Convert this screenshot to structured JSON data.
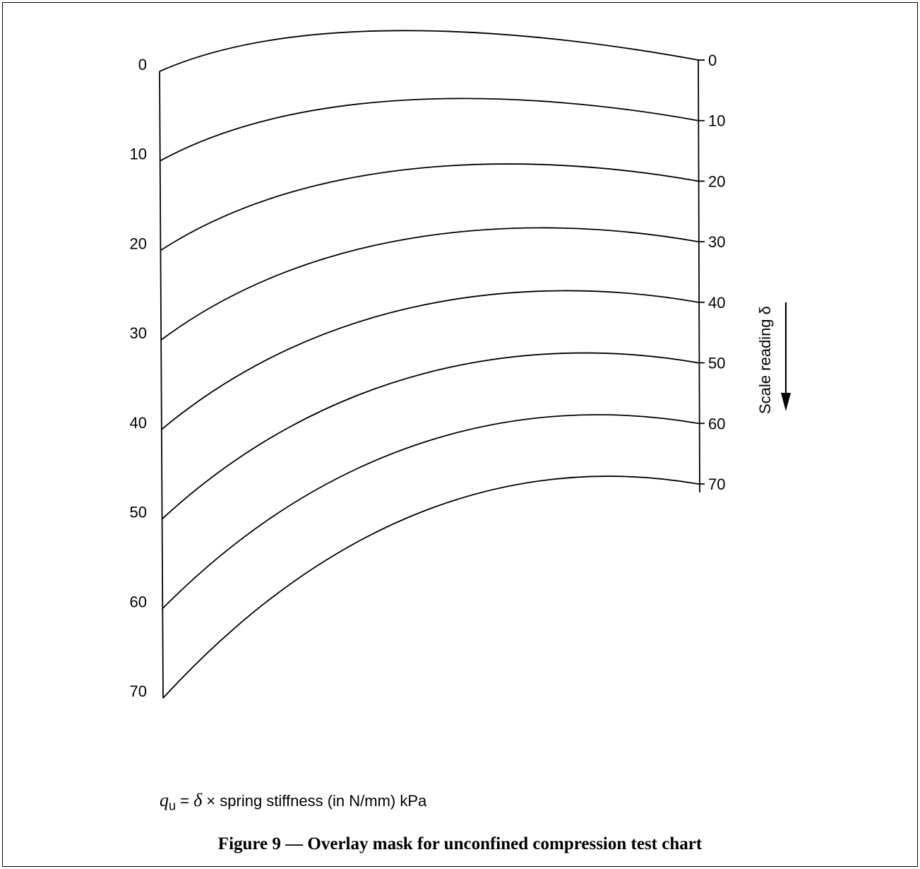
{
  "figure": {
    "caption": "Figure 9 — Overlay mask for unconfined compression test chart",
    "formula": {
      "symbol": "q",
      "subscript": "u",
      "equals": " = ",
      "delta": "δ",
      "text": " × spring stiffness (in N/mm) kPa"
    },
    "left_scale": {
      "ticks": [
        "0",
        "10",
        "20",
        "30",
        "40",
        "50",
        "60",
        "70"
      ]
    },
    "right_scale": {
      "label": "Scale reading δ",
      "ticks": [
        "0",
        "10",
        "20",
        "30",
        "40",
        "50",
        "60",
        "70"
      ]
    },
    "curves": [
      {
        "left_value": 0,
        "right_value": 0
      },
      {
        "left_value": 10,
        "right_value": 10
      },
      {
        "left_value": 20,
        "right_value": 20
      },
      {
        "left_value": 30,
        "right_value": 30
      },
      {
        "left_value": 40,
        "right_value": 40
      },
      {
        "left_value": 50,
        "right_value": 50
      },
      {
        "left_value": 60,
        "right_value": 60
      },
      {
        "left_value": 70,
        "right_value": 70
      }
    ]
  }
}
